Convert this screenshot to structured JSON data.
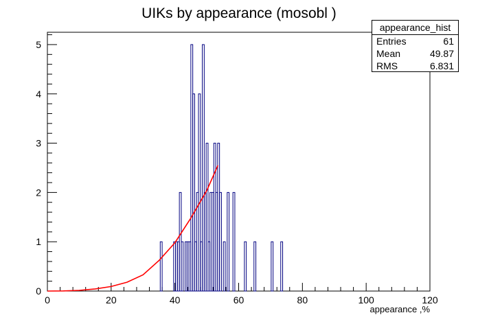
{
  "chart_data": {
    "type": "bar",
    "title": "UIKs by appearance (mosobl )",
    "xlabel": "appearance ,%",
    "ylabel": "",
    "xlim": [
      0,
      120
    ],
    "ylim": [
      0,
      5.25
    ],
    "x_ticks": [
      "0",
      "20",
      "40",
      "60",
      "80",
      "100",
      "120"
    ],
    "y_ticks": [
      "0",
      "1",
      "2",
      "3",
      "4",
      "5"
    ],
    "bin_width": 0.6,
    "bins": [
      {
        "x": 35.4,
        "count": 1
      },
      {
        "x": 39.6,
        "count": 1
      },
      {
        "x": 40.2,
        "count": 1
      },
      {
        "x": 40.8,
        "count": 1
      },
      {
        "x": 41.4,
        "count": 2
      },
      {
        "x": 42.0,
        "count": 1
      },
      {
        "x": 43.2,
        "count": 1
      },
      {
        "x": 43.8,
        "count": 1
      },
      {
        "x": 44.4,
        "count": 1
      },
      {
        "x": 45.0,
        "count": 5
      },
      {
        "x": 45.6,
        "count": 4
      },
      {
        "x": 46.2,
        "count": 1
      },
      {
        "x": 46.8,
        "count": 2
      },
      {
        "x": 47.4,
        "count": 4
      },
      {
        "x": 48.0,
        "count": 1
      },
      {
        "x": 48.6,
        "count": 5
      },
      {
        "x": 49.2,
        "count": 2
      },
      {
        "x": 49.8,
        "count": 3
      },
      {
        "x": 50.4,
        "count": 1
      },
      {
        "x": 51.0,
        "count": 2
      },
      {
        "x": 51.6,
        "count": 2
      },
      {
        "x": 52.2,
        "count": 3
      },
      {
        "x": 52.8,
        "count": 2
      },
      {
        "x": 53.4,
        "count": 3
      },
      {
        "x": 54.0,
        "count": 2
      },
      {
        "x": 55.2,
        "count": 1
      },
      {
        "x": 56.4,
        "count": 2
      },
      {
        "x": 58.2,
        "count": 2
      },
      {
        "x": 61.8,
        "count": 1
      },
      {
        "x": 64.8,
        "count": 1
      },
      {
        "x": 70.2,
        "count": 1
      },
      {
        "x": 73.2,
        "count": 1
      }
    ],
    "fit_curve": {
      "color": "#ff0000",
      "points": [
        [
          0,
          0.0
        ],
        [
          5,
          0.003
        ],
        [
          10,
          0.014
        ],
        [
          15,
          0.043
        ],
        [
          20,
          0.092
        ],
        [
          25,
          0.18
        ],
        [
          30,
          0.33
        ],
        [
          35,
          0.62
        ],
        [
          40,
          0.98
        ],
        [
          45,
          1.48
        ],
        [
          50,
          2.04
        ],
        [
          53.5,
          2.55
        ]
      ]
    },
    "stats_box": {
      "name": "appearance_hist",
      "rows": [
        {
          "label": "Entries",
          "value": "61"
        },
        {
          "label": "Mean",
          "value": "49.87"
        },
        {
          "label": "RMS",
          "value": "6.831"
        }
      ]
    },
    "colors": {
      "histogram": "#000080",
      "fit": "#ff0000",
      "frame": "#000000"
    }
  }
}
